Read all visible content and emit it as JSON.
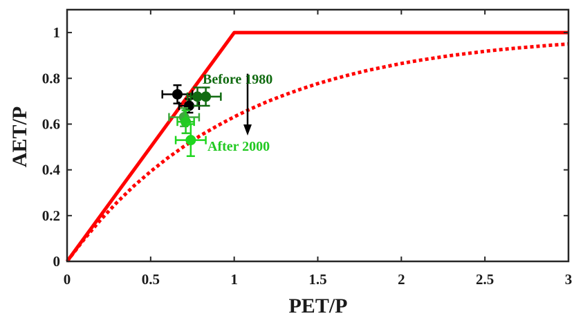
{
  "chart_data": {
    "type": "scatter",
    "title": "",
    "xlabel": "PET/P",
    "ylabel": "AET/P",
    "xlim": [
      0,
      3
    ],
    "ylim": [
      0,
      1.1
    ],
    "xticks": [
      "0",
      "0.5",
      "1",
      "1.5",
      "2",
      "2.5",
      "3"
    ],
    "yticks": [
      "0",
      "0.2",
      "0.4",
      "0.6",
      "0.8",
      "1"
    ],
    "grid": false,
    "curves": [
      {
        "style": "solid",
        "color": "#ff0000",
        "x": [
          0,
          1,
          3
        ],
        "y": [
          0,
          1,
          1
        ]
      },
      {
        "style": "dotted",
        "color": "#ff0000",
        "x": [
          0,
          0.1,
          0.2,
          0.3,
          0.4,
          0.5,
          0.6,
          0.7,
          0.8,
          0.9,
          1.0,
          1.1,
          1.2,
          1.3,
          1.4,
          1.5,
          1.6,
          1.7,
          1.8,
          1.9,
          2.0,
          2.1,
          2.2,
          2.3,
          2.4,
          2.5,
          2.6,
          2.7,
          2.8,
          2.9,
          3.0
        ],
        "y": [
          0,
          0.095,
          0.181,
          0.259,
          0.33,
          0.393,
          0.451,
          0.503,
          0.551,
          0.593,
          0.632,
          0.667,
          0.699,
          0.727,
          0.753,
          0.777,
          0.798,
          0.817,
          0.835,
          0.85,
          0.865,
          0.878,
          0.889,
          0.9,
          0.909,
          0.918,
          0.926,
          0.933,
          0.939,
          0.945,
          0.95
        ]
      }
    ],
    "points": [
      {
        "x": 0.66,
        "y": 0.73,
        "xerr": 0.09,
        "yerr": 0.04,
        "color": "#000000"
      },
      {
        "x": 0.73,
        "y": 0.68,
        "xerr": 0.06,
        "yerr": 0.03,
        "color": "#000000"
      },
      {
        "x": 0.78,
        "y": 0.72,
        "xerr": 0.06,
        "yerr": 0.04,
        "color": "#116b11"
      },
      {
        "x": 0.83,
        "y": 0.72,
        "xerr": 0.09,
        "yerr": 0.04,
        "color": "#116b11"
      },
      {
        "x": 0.7,
        "y": 0.63,
        "xerr": 0.09,
        "yerr": 0.04,
        "color": "#3ea93e"
      },
      {
        "x": 0.71,
        "y": 0.61,
        "xerr": 0.05,
        "yerr": 0.05,
        "color": "#22c922"
      },
      {
        "x": 0.74,
        "y": 0.53,
        "xerr": 0.09,
        "yerr": 0.07,
        "color": "#1fd61f"
      }
    ],
    "annotations": [
      {
        "text": "Before 1980",
        "color": "#116b11"
      },
      {
        "text": "After 2000",
        "color": "#22c922"
      }
    ],
    "arrow": {
      "x": 1.08,
      "y_from": 0.82,
      "y_to": 0.55,
      "color": "#000000"
    }
  }
}
